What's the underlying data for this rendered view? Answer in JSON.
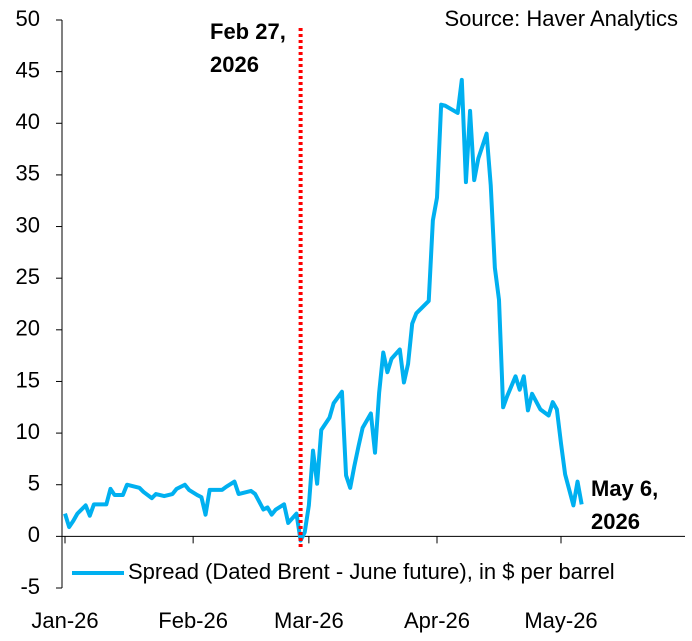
{
  "chart_data": {
    "type": "line",
    "source": "Source: Haver Analytics",
    "xlim": [
      0,
      150
    ],
    "xticks": [
      {
        "value": 0,
        "label": "Jan-26"
      },
      {
        "value": 31,
        "label": "Feb-26"
      },
      {
        "value": 59,
        "label": "Mar-26"
      },
      {
        "value": 90,
        "label": "Apr-26"
      },
      {
        "value": 120,
        "label": "May-26"
      }
    ],
    "ylim": [
      -5,
      50
    ],
    "yticks": [
      -5,
      0,
      5,
      10,
      15,
      20,
      25,
      30,
      35,
      40,
      45,
      50
    ],
    "grid": false,
    "vline": {
      "x": 57,
      "color": "#ff0000"
    },
    "annotations": [
      {
        "lines": [
          "Feb 27,",
          "2026"
        ],
        "color": "#ff0000"
      },
      {
        "lines": [
          "May 6,",
          "2026"
        ],
        "color": "#00b0f0"
      }
    ],
    "legend": "bottom-left",
    "series": [
      {
        "name": "Spread (Dated Brent - June future), in $ per barrel",
        "color": "#00b0f0",
        "x": [
          0,
          1,
          2,
          3,
          5,
          6,
          7,
          10,
          11,
          12,
          14,
          15,
          18,
          19,
          21,
          22,
          24,
          26,
          27,
          29,
          30,
          32,
          33,
          34,
          35,
          38,
          39,
          41,
          42,
          45,
          46,
          48,
          49,
          50,
          51,
          53,
          54,
          56,
          57,
          58,
          59,
          60,
          61,
          62,
          64,
          65,
          67,
          68,
          69,
          70,
          71,
          72,
          74,
          75,
          76,
          77,
          78,
          79,
          81,
          82,
          83,
          84,
          85,
          88,
          89,
          90,
          91,
          92,
          95,
          96,
          97,
          98,
          99,
          100,
          102,
          103,
          104,
          105,
          106,
          107,
          109,
          110,
          111,
          112,
          113,
          115,
          117,
          118,
          119,
          120,
          121,
          123,
          124,
          125
        ],
        "values": [
          2.2,
          0.9,
          1.5,
          2.2,
          3.0,
          2.0,
          3.1,
          3.1,
          4.6,
          4.0,
          4.0,
          5.0,
          4.7,
          4.3,
          3.7,
          4.1,
          3.9,
          4.1,
          4.6,
          5.0,
          4.5,
          4.0,
          3.8,
          2.1,
          4.5,
          4.5,
          4.8,
          5.3,
          4.1,
          4.4,
          4.1,
          2.6,
          2.8,
          2.1,
          2.6,
          3.1,
          1.3,
          2.2,
          -0.4,
          0.4,
          3.0,
          8.3,
          5.1,
          10.3,
          11.5,
          12.9,
          14.0,
          5.9,
          4.7,
          6.8,
          8.7,
          10.5,
          11.9,
          8.1,
          13.9,
          17.8,
          15.9,
          17.2,
          18.1,
          14.9,
          16.7,
          20.6,
          21.6,
          22.8,
          30.6,
          32.8,
          41.8,
          41.7,
          41.0,
          44.2,
          34.3,
          41.2,
          34.5,
          36.6,
          39.0,
          34.0,
          26.0,
          22.9,
          12.5,
          13.6,
          15.5,
          14.2,
          15.5,
          12.2,
          13.8,
          12.3,
          11.7,
          13.0,
          12.3,
          9.0,
          6.0,
          3.0,
          5.3,
          3.1
        ]
      }
    ]
  }
}
